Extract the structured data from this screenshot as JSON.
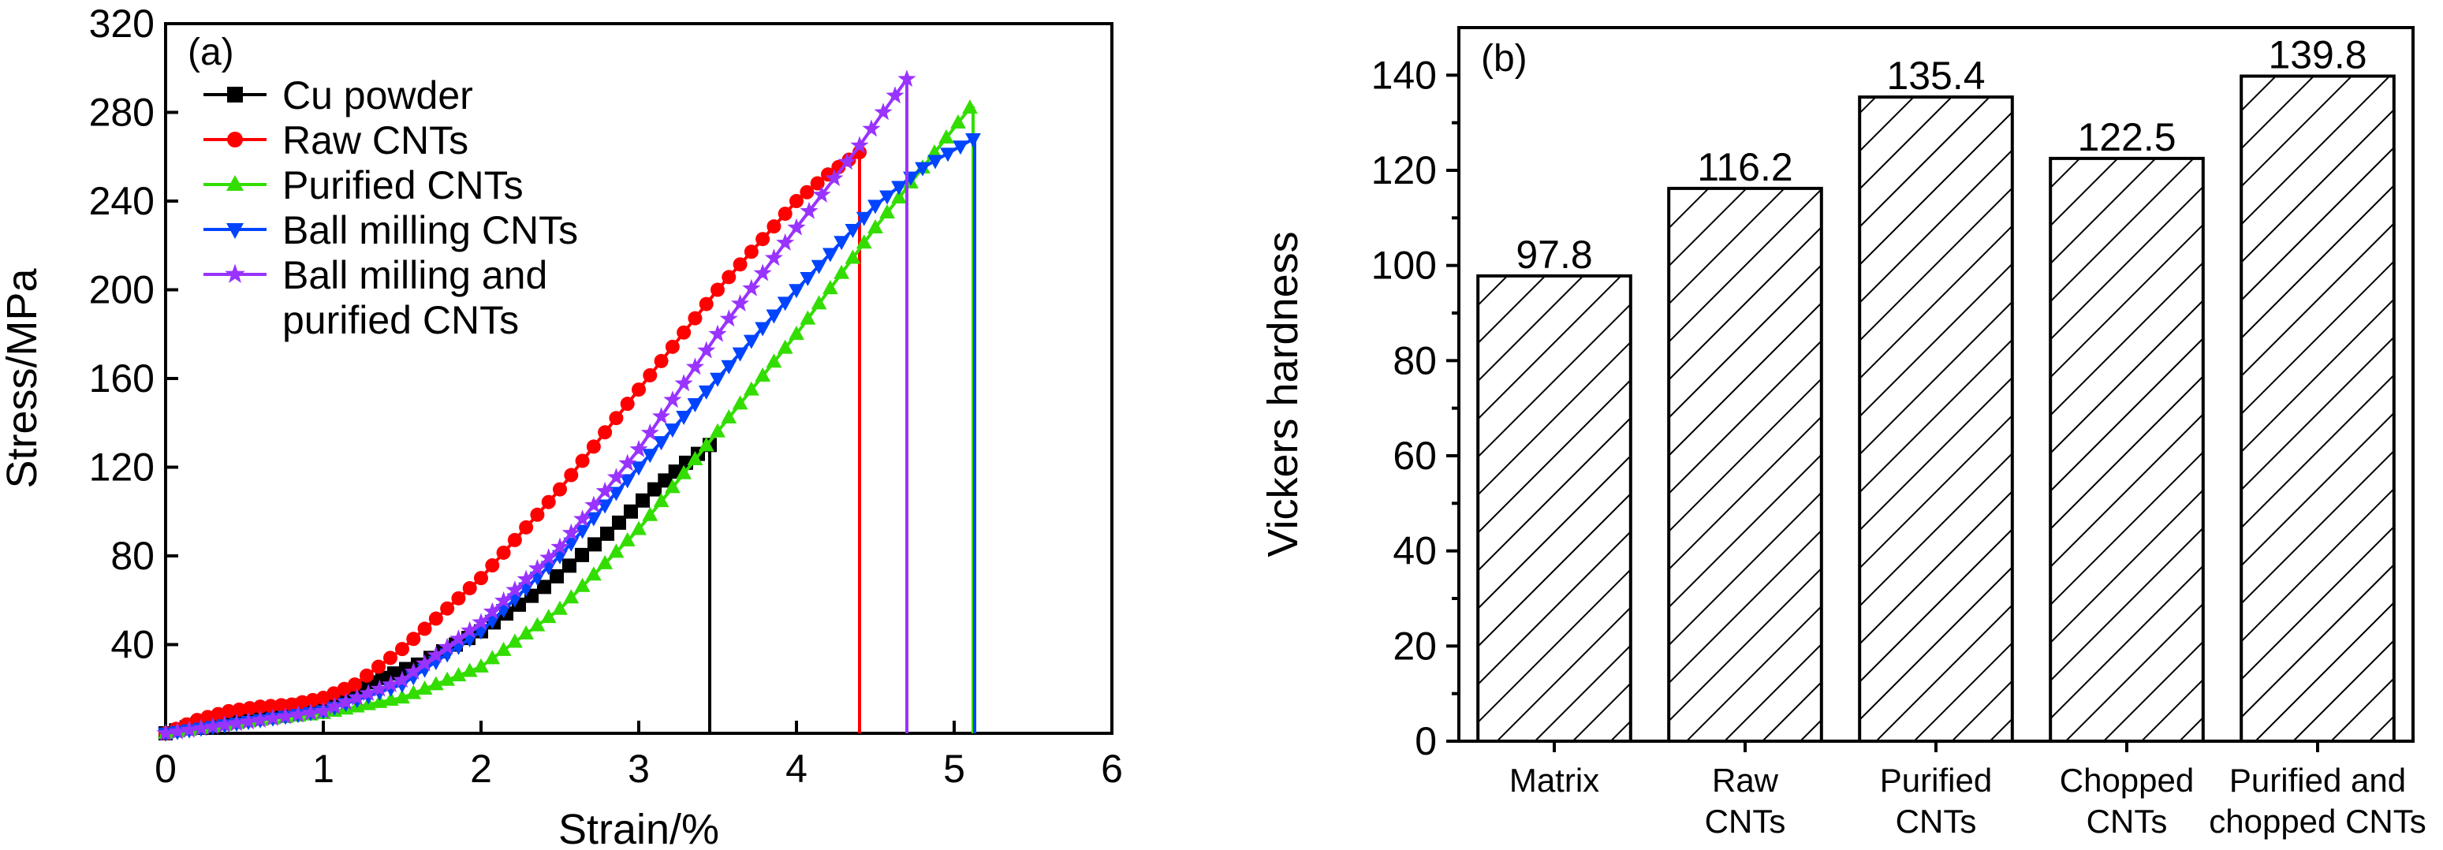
{
  "chart_data": [
    {
      "type": "line",
      "panel_label": "(a)",
      "xlabel": "Strain/%",
      "ylabel": "Stress/MPa",
      "xlim": [
        0,
        6
      ],
      "ylim": [
        0,
        320
      ],
      "xticks": [
        "0",
        "1",
        "2",
        "3",
        "4",
        "5",
        "6"
      ],
      "yticks": [
        "40",
        "80",
        "120",
        "160",
        "200",
        "240",
        "280",
        "320"
      ],
      "legend": [
        {
          "label": "Cu powder",
          "color": "#000000",
          "marker": "square"
        },
        {
          "label": "Raw CNTs",
          "color": "#ff0000",
          "marker": "circle"
        },
        {
          "label": "Purified CNTs",
          "color": "#33dd00",
          "marker": "triangle-up"
        },
        {
          "label": "Ball milling CNTs",
          "color": "#0044ff",
          "marker": "triangle-down"
        },
        {
          "label": "Ball milling and",
          "label2": "purified CNTs",
          "color": "#9933ff",
          "marker": "star"
        }
      ],
      "series": [
        {
          "name": "Cu powder",
          "color": "#000000",
          "marker": "square",
          "points": [
            [
              0,
              0
            ],
            [
              0.2,
              4
            ],
            [
              0.5,
              9
            ],
            [
              0.8,
              12
            ],
            [
              1.0,
              14
            ],
            [
              1.3,
              23
            ],
            [
              1.6,
              31
            ],
            [
              2.0,
              46
            ],
            [
              2.4,
              66
            ],
            [
              2.8,
              90
            ],
            [
              3.1,
              110
            ],
            [
              3.3,
              122
            ],
            [
              3.45,
              130
            ]
          ],
          "fracture_strain": 3.45
        },
        {
          "name": "Raw CNTs",
          "color": "#ff0000",
          "marker": "circle",
          "points": [
            [
              0,
              0
            ],
            [
              0.2,
              6
            ],
            [
              0.4,
              10
            ],
            [
              0.6,
              12
            ],
            [
              0.8,
              13
            ],
            [
              1.0,
              16
            ],
            [
              1.2,
              22
            ],
            [
              1.5,
              38
            ],
            [
              2.0,
              70
            ],
            [
              2.5,
              110
            ],
            [
              3.0,
              155
            ],
            [
              3.5,
              200
            ],
            [
              4.0,
              240
            ],
            [
              4.2,
              252
            ],
            [
              4.4,
              262
            ]
          ],
          "fracture_strain": 4.4
        },
        {
          "name": "Purified CNTs",
          "color": "#33dd00",
          "marker": "triangle-up",
          "points": [
            [
              0,
              0
            ],
            [
              0.3,
              3
            ],
            [
              0.6,
              6
            ],
            [
              1.0,
              9
            ],
            [
              1.5,
              16
            ],
            [
              2.0,
              30
            ],
            [
              2.5,
              56
            ],
            [
              3.0,
              92
            ],
            [
              3.5,
              136
            ],
            [
              4.0,
              180
            ],
            [
              4.5,
              228
            ],
            [
              4.8,
              255
            ],
            [
              5.1,
              282
            ]
          ],
          "fracture_strain": 5.12
        },
        {
          "name": "Ball milling CNTs",
          "color": "#0044ff",
          "marker": "triangle-down",
          "points": [
            [
              0,
              0
            ],
            [
              0.3,
              3
            ],
            [
              0.6,
              6
            ],
            [
              1.0,
              10
            ],
            [
              1.5,
              22
            ],
            [
              2.0,
              46
            ],
            [
              2.5,
              80
            ],
            [
              3.0,
              120
            ],
            [
              3.5,
              160
            ],
            [
              4.0,
              200
            ],
            [
              4.5,
              238
            ],
            [
              4.8,
              255
            ],
            [
              5.12,
              268
            ]
          ],
          "fracture_strain": 5.13
        },
        {
          "name": "Ball milling and purified CNTs",
          "color": "#9933ff",
          "marker": "star",
          "points": [
            [
              0,
              0
            ],
            [
              0.3,
              3
            ],
            [
              0.6,
              6
            ],
            [
              1.0,
              10
            ],
            [
              1.5,
              24
            ],
            [
              2.0,
              50
            ],
            [
              2.5,
              84
            ],
            [
              3.0,
              128
            ],
            [
              3.5,
              180
            ],
            [
              4.0,
              228
            ],
            [
              4.4,
              265
            ],
            [
              4.7,
              295
            ]
          ],
          "fracture_strain": 4.7
        }
      ]
    },
    {
      "type": "bar",
      "panel_label": "(b)",
      "xlabel": "",
      "ylabel": "Vickers hardness",
      "ylim": [
        0,
        150
      ],
      "yticks": [
        "0",
        "20",
        "40",
        "60",
        "80",
        "100",
        "120",
        "140"
      ],
      "categories": [
        [
          "Matrix"
        ],
        [
          "Raw",
          "CNTs"
        ],
        [
          "Purified",
          "CNTs"
        ],
        [
          "Chopped",
          "CNTs"
        ],
        [
          "Purified and",
          "chopped CNTs"
        ]
      ],
      "values": [
        97.8,
        116.2,
        135.4,
        122.5,
        139.8
      ],
      "value_labels": [
        "97.8",
        "116.2",
        "135.4",
        "122.5",
        "139.8"
      ],
      "bar_fill": "hatched"
    }
  ]
}
